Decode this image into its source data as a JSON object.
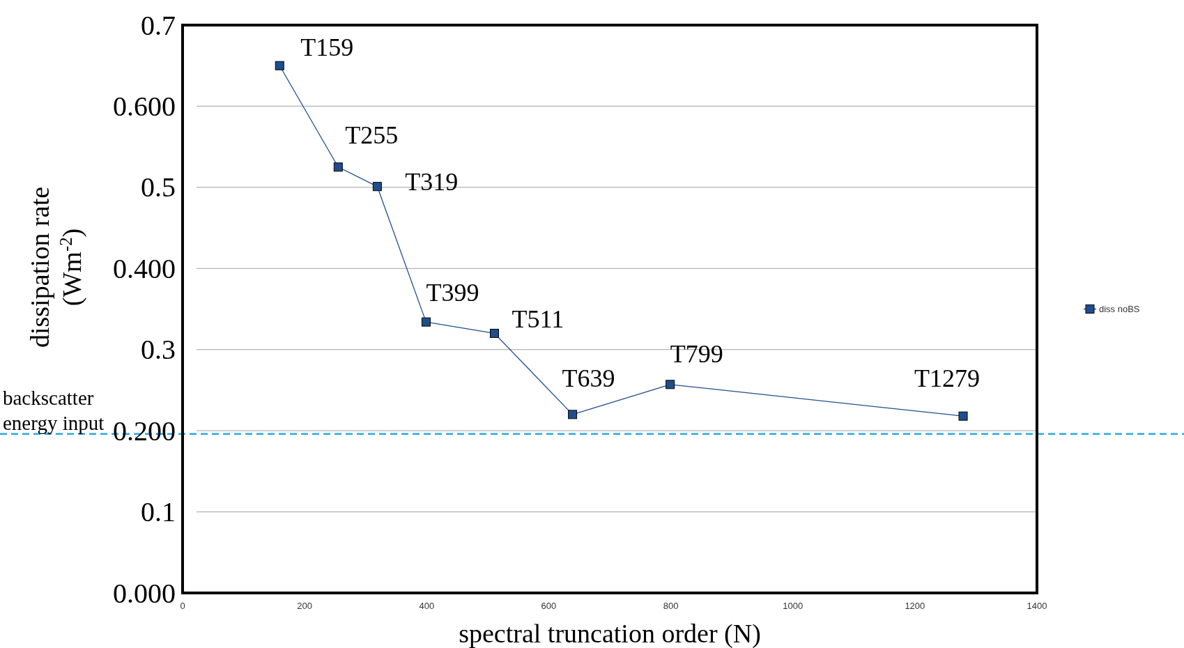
{
  "chart_data": {
    "type": "line",
    "xlabel": "spectral truncation order (N)",
    "ylabel": "dissipation rate (Wm$^{-2}$)",
    "x": [
      159,
      255,
      319,
      399,
      511,
      639,
      799,
      1279
    ],
    "series": [
      {
        "name": "diss noBS",
        "color": "#1f4e8c",
        "values": [
          0.65,
          0.525,
          0.501,
          0.334,
          0.32,
          0.22,
          0.257,
          0.218
        ]
      }
    ],
    "xlim": [
      0,
      1400
    ],
    "xticks": [
      0,
      200,
      400,
      600,
      800,
      1000,
      1200,
      1400
    ],
    "ylim": [
      0,
      0.7
    ],
    "yticks": [
      {
        "value": 0,
        "label": "0.000"
      },
      {
        "value": 0.1,
        "label": "0.1"
      },
      {
        "value": 0.2,
        "label": "0.200"
      },
      {
        "value": 0.3,
        "label": "0.3"
      },
      {
        "value": 0.4,
        "label": "0.400"
      },
      {
        "value": 0.5,
        "label": "0.5"
      },
      {
        "value": 0.6,
        "label": "0.600"
      },
      {
        "value": 0.7,
        "label": "0.7"
      }
    ],
    "grid": "y",
    "marker": "square",
    "line_style": "solid",
    "legend": "right",
    "ref_lines": [
      {
        "axis": "y",
        "value": 0.196,
        "label": "backscatter energy input",
        "color": "#29aae2",
        "line_style": "dashed"
      }
    ],
    "annotations": [
      {
        "text": "T159",
        "x": 159,
        "y": 0.65
      },
      {
        "text": "T255",
        "x": 255,
        "y": 0.525
      },
      {
        "text": "T319",
        "x": 319,
        "y": 0.501
      },
      {
        "text": "T399",
        "x": 399,
        "y": 0.334
      },
      {
        "text": "T511",
        "x": 511,
        "y": 0.32
      },
      {
        "text": "T639",
        "x": 639,
        "y": 0.22
      },
      {
        "text": "T799",
        "x": 799,
        "y": 0.257
      },
      {
        "text": "T1279",
        "x": 1279,
        "y": 0.218
      }
    ]
  }
}
